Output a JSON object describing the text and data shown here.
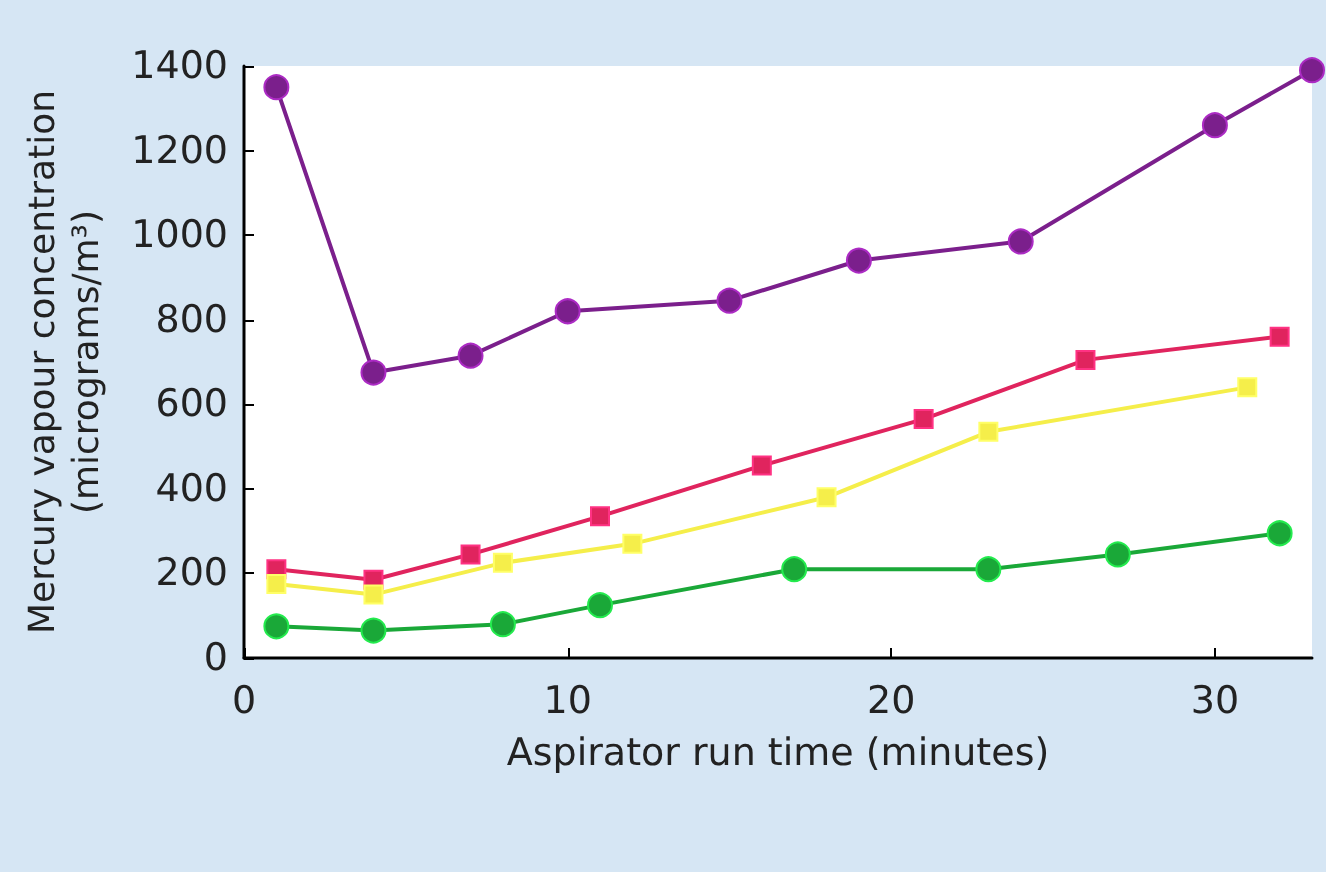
{
  "chart_data": {
    "type": "line",
    "xlabel": "Aspirator run time (minutes)",
    "ylabel": "Mercury vapour concentration\n(micrograms/m³)",
    "xlim": [
      0,
      33
    ],
    "xticks": [
      0,
      10,
      20,
      30
    ],
    "ylim": [
      0,
      1400
    ],
    "yticks": [
      0,
      200,
      400,
      600,
      800,
      1000,
      1200,
      1400
    ],
    "grid": false,
    "line_style": "solid",
    "series": [
      {
        "color": "#7b1f8c",
        "marker": "circle",
        "x": [
          1,
          4,
          7,
          10,
          15,
          19,
          24,
          30,
          33
        ],
        "values": [
          1350,
          675,
          715,
          820,
          845,
          940,
          985,
          1260,
          1390
        ]
      },
      {
        "color": "#e0245e",
        "marker": "square",
        "x": [
          1,
          4,
          7,
          11,
          16,
          21,
          26,
          32
        ],
        "values": [
          210,
          185,
          245,
          335,
          455,
          565,
          705,
          760
        ]
      },
      {
        "color": "#f5ee4a",
        "marker": "square",
        "x": [
          1,
          4,
          8,
          12,
          18,
          23,
          31
        ],
        "values": [
          175,
          150,
          225,
          270,
          380,
          535,
          640
        ]
      },
      {
        "color": "#1aa838",
        "marker": "circle",
        "x": [
          1,
          4,
          8,
          11,
          17,
          23,
          27,
          32
        ],
        "values": [
          75,
          65,
          80,
          125,
          210,
          210,
          245,
          295
        ]
      }
    ]
  }
}
